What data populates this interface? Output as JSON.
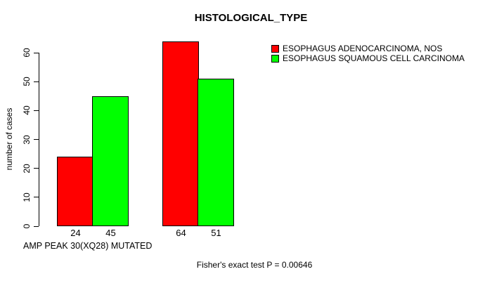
{
  "title": "HISTOLOGICAL_TYPE",
  "chart_data": {
    "type": "bar",
    "title": "HISTOLOGICAL_TYPE",
    "ylabel": "number of cases",
    "xlabel": "AMP PEAK 30(XQ28) MUTATED",
    "ylim": [
      0,
      60
    ],
    "yticks": [
      0,
      10,
      20,
      30,
      40,
      50,
      60
    ],
    "grid": false,
    "legend_position": "top-right",
    "series": [
      {
        "name": "ESOPHAGUS ADENOCARCINOMA, NOS",
        "color": "#FF0000",
        "values": [
          24,
          64
        ]
      },
      {
        "name": "ESOPHAGUS SQUAMOUS CELL CARCINOMA",
        "color": "#00FF00",
        "values": [
          45,
          51
        ]
      }
    ],
    "bar_labels": [
      "24",
      "45",
      "64",
      "51"
    ],
    "annotation": "Fisher's exact test P = 0.00646"
  }
}
